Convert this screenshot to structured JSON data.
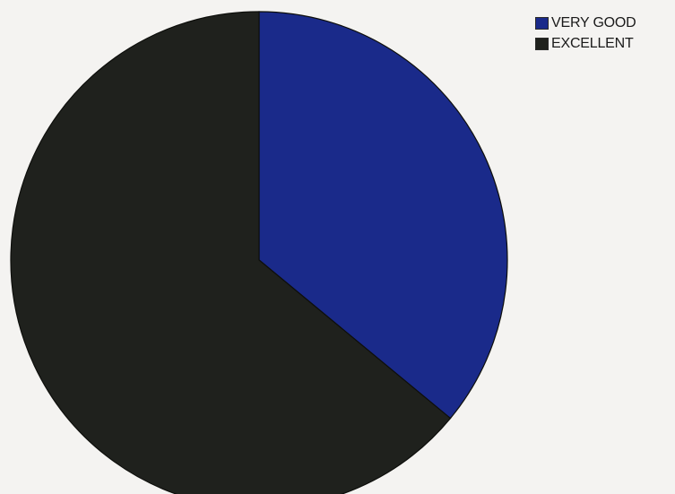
{
  "chart_data": {
    "type": "pie",
    "title": "",
    "slices": [
      {
        "label": "VERY GOOD",
        "value": 36,
        "color": "#1a2a8a"
      },
      {
        "label": "EXCELLENT",
        "value": 64,
        "color": "#1f211d"
      }
    ],
    "start_angle": "12 o'clock",
    "direction": "clockwise",
    "legend_position": "top-right"
  }
}
